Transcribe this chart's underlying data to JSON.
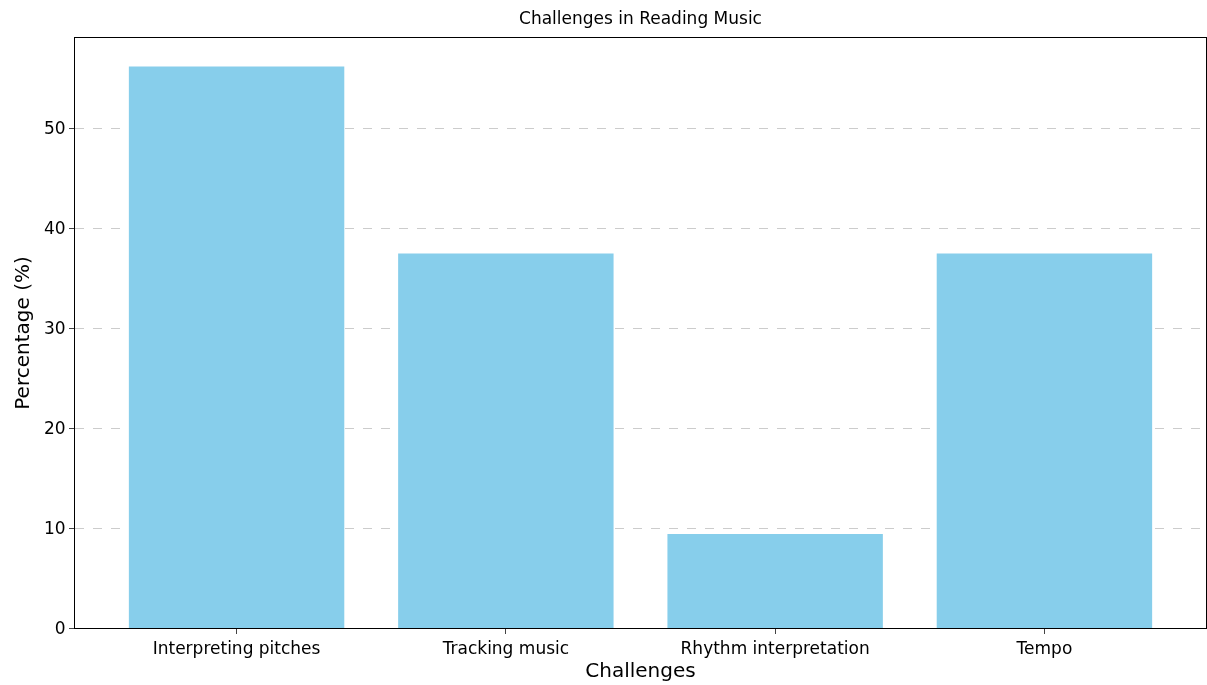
{
  "chart_data": {
    "type": "bar",
    "title": "Challenges in Reading Music",
    "xlabel": "Challenges",
    "ylabel": "Percentage (%)",
    "categories": [
      "Interpreting pitches",
      "Tracking music",
      "Rhythm interpretation",
      "Tempo"
    ],
    "values": [
      56.2,
      37.5,
      9.4,
      37.5
    ],
    "color": "#87ceeb",
    "ylim": [
      0,
      59.06
    ],
    "yticks": [
      0,
      10,
      20,
      30,
      40,
      50
    ],
    "grid": "y"
  }
}
